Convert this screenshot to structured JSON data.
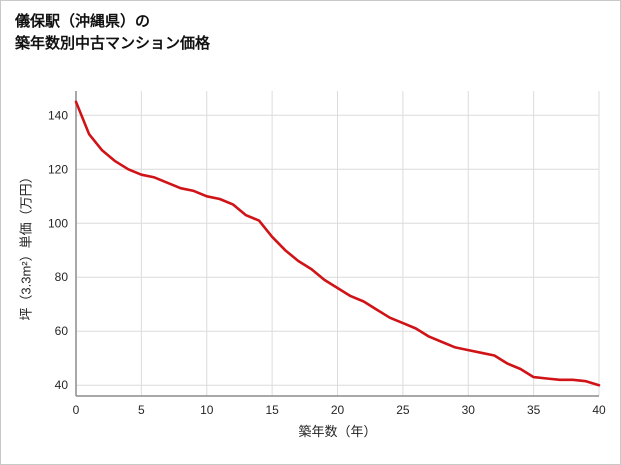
{
  "title": {
    "line1": "儀保駅（沖縄県）の",
    "line2": "築年数別中古マンション価格"
  },
  "chart_data": {
    "type": "line",
    "title": "儀保駅（沖縄県）の築年数別中古マンション価格",
    "xlabel": "築年数（年）",
    "ylabel": "坪（3.3m²）単価（万円）",
    "x": [
      0,
      1,
      2,
      3,
      4,
      5,
      6,
      7,
      8,
      9,
      10,
      11,
      12,
      13,
      14,
      15,
      16,
      17,
      18,
      19,
      20,
      21,
      22,
      23,
      24,
      25,
      26,
      27,
      28,
      29,
      30,
      31,
      32,
      33,
      34,
      35,
      36,
      37,
      38,
      39,
      40
    ],
    "series": [
      {
        "name": "坪単価",
        "values": [
          145,
          133,
          127,
          123,
          120,
          118,
          117,
          115,
          113,
          112,
          110,
          109,
          107,
          103,
          101,
          95,
          90,
          86,
          83,
          79,
          76,
          73,
          71,
          68,
          65,
          63,
          61,
          58,
          56,
          54,
          53,
          52,
          51,
          48,
          46,
          43,
          42.5,
          42,
          42,
          41.5,
          40
        ]
      }
    ],
    "xlim": [
      0,
      40
    ],
    "ylim": [
      36,
      149
    ],
    "xticks": [
      0,
      5,
      10,
      15,
      20,
      25,
      30,
      35,
      40
    ],
    "yticks": [
      40,
      60,
      80,
      100,
      120,
      140
    ],
    "grid": true,
    "legend": "none",
    "line_color": "#d01317",
    "grid_color": "#dcdcdc",
    "axis_color": "#8c8c8c"
  }
}
